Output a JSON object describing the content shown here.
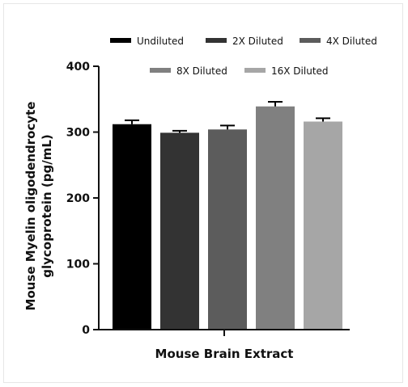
{
  "chart_data": {
    "type": "bar",
    "xlabel": "Mouse Brain Extract",
    "ylabel_line1": "Mouse Myelin oligodendrocyte",
    "ylabel_line2": "glycoprotein (pg/mL)",
    "ylim": [
      0,
      400
    ],
    "yticks": [
      0,
      100,
      200,
      300,
      400
    ],
    "grid": false,
    "legend_position": "top",
    "series": [
      {
        "name": "Undiluted",
        "value": 312,
        "error": 6,
        "color": "#000000"
      },
      {
        "name": "2X Diluted",
        "value": 299,
        "error": 3,
        "color": "#333333"
      },
      {
        "name": "4X Diluted",
        "value": 304,
        "error": 6,
        "color": "#5c5c5c"
      },
      {
        "name": "8X Diluted",
        "value": 339,
        "error": 7,
        "color": "#808080"
      },
      {
        "name": "16X Diluted",
        "value": 316,
        "error": 5,
        "color": "#a6a6a6"
      }
    ]
  }
}
